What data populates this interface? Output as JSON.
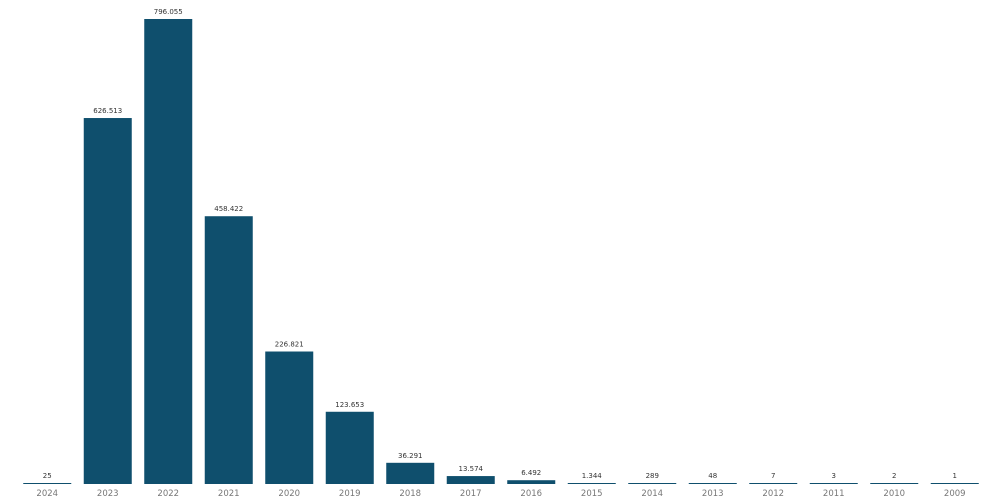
{
  "chart_data": {
    "type": "bar",
    "categories": [
      "2024",
      "2023",
      "2022",
      "2021",
      "2020",
      "2019",
      "2018",
      "2017",
      "2016",
      "2015",
      "2014",
      "2013",
      "2012",
      "2011",
      "2010",
      "2009"
    ],
    "values": [
      25,
      626513,
      796055,
      458422,
      226821,
      123653,
      36291,
      13574,
      6492,
      1344,
      289,
      48,
      7,
      3,
      2,
      1
    ],
    "value_labels": [
      "25",
      "626.513",
      "796.055",
      "458.422",
      "226.821",
      "123.653",
      "36.291",
      "13.574",
      "6.492",
      "1.344",
      "289",
      "48",
      "7",
      "3",
      "2",
      "1"
    ],
    "title": "",
    "xlabel": "",
    "ylabel": "",
    "ylim": [
      0,
      800000
    ],
    "grid": false,
    "legend": "none",
    "bar_color": "#0f4f6d"
  }
}
